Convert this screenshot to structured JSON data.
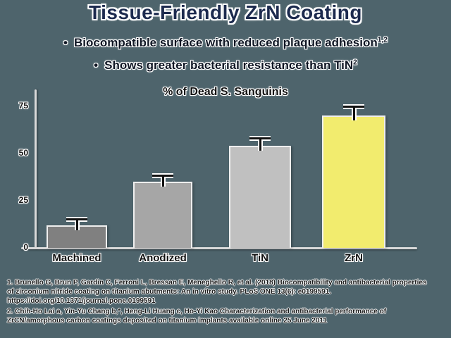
{
  "slide": {
    "title": "Tissue-Friendly ZrN Coating",
    "bullet_char": "•",
    "bullets": [
      {
        "text": "Biocompatible surface with reduced plaque adhesion",
        "superscript": "1,2"
      },
      {
        "text": "Shows greater bacterial resistance than TiN",
        "superscript": "2"
      }
    ]
  },
  "chart_data": {
    "type": "bar",
    "title": "% of Dead S. Sanguinis",
    "categories": [
      "Machined",
      "Anodized",
      "TiN",
      "ZrN"
    ],
    "values": [
      12,
      35,
      54,
      70
    ],
    "error_values": [
      2.5,
      2.5,
      3.5,
      4
    ],
    "bar_colors": [
      "#808080",
      "#a6a6a6",
      "#c0c0c0",
      "#f2ec6e"
    ],
    "yticks": [
      0,
      25,
      50,
      75
    ],
    "ylim": [
      0,
      83
    ],
    "xlabel": "",
    "ylabel": "",
    "grid": false,
    "legend": "none"
  },
  "footnotes": [
    "1. Brunello G, Brun P, Gardin C, Ferroni L, Bressan E, Meneghello R, et al. (2018) Biocompatibility and antibacterial properties of zirconium nitride coating on titanium abutments: An in vitro study. PLoS ONE 13(6): e0199591. https://doi.org/10.1371/journal.pone.0199591",
    "2. Chih-Ho Lai a, Yin-Yu Chang b,*, Heng-Li Huang c, Ho-Yi Kao Characterization and antibacterial performance of ZrCN/amorphous carbon coatings deposited on titanium implants available online 25 June 2011"
  ],
  "colors": {
    "background": "#4e646c",
    "title_text": "#1c2a4e",
    "body_text": "#0f1624",
    "chart_text": "#111111",
    "axis_line": "#d9d9d9",
    "error_bar": "#111111",
    "footnote_text": "#1a1a1a"
  }
}
